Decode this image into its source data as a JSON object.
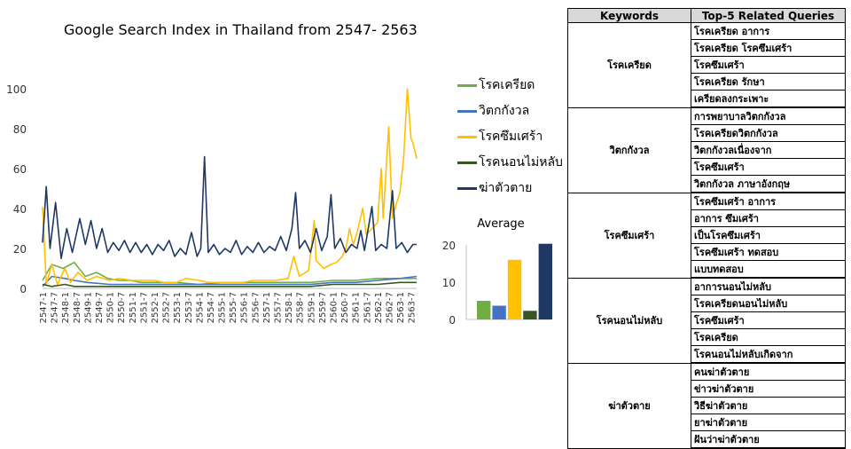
{
  "chart_data": [
    {
      "type": "line",
      "title": "Google Search Index in Thailand from 2547- 2563",
      "ylim": [
        0,
        100
      ],
      "yticks": [
        0,
        20,
        40,
        60,
        80,
        100
      ],
      "x_tick_labels": [
        "2547-1",
        "2547-7",
        "2548-1",
        "2548-7",
        "2549-1",
        "2549-7",
        "2550-1",
        "2550-7",
        "2551-1",
        "2551-7",
        "2552-1",
        "2552-7",
        "2553-1",
        "2553-7",
        "2554-1",
        "2554-7",
        "2555-1",
        "2555-7",
        "2556-1",
        "2556-7",
        "2557-1",
        "2557-7",
        "2558-1",
        "2558-7",
        "2559-1",
        "2559-7",
        "2560-1",
        "2560-7",
        "2561-1",
        "2561-7",
        "2562-1",
        "2562-7",
        "2563-1",
        "2563-7"
      ],
      "x_range": [
        "2547-1",
        "2563-10"
      ],
      "legend": "right",
      "grid": false,
      "series": [
        {
          "name": "โรคเครียด",
          "color": "#70ad47",
          "points": [
            [
              "2547-1",
              4
            ],
            [
              "2547-6",
              12
            ],
            [
              "2547-12",
              10
            ],
            [
              "2548-6",
              13
            ],
            [
              "2548-12",
              6
            ],
            [
              "2549-6",
              8
            ],
            [
              "2549-12",
              5
            ],
            [
              "2550-6",
              4
            ],
            [
              "2550-12",
              4
            ],
            [
              "2551-6",
              3
            ],
            [
              "2552-1",
              3
            ],
            [
              "2553-1",
              3
            ],
            [
              "2554-1",
              2
            ],
            [
              "2555-1",
              3
            ],
            [
              "2556-1",
              3
            ],
            [
              "2557-1",
              3
            ],
            [
              "2558-1",
              3
            ],
            [
              "2559-1",
              3
            ],
            [
              "2560-1",
              4
            ],
            [
              "2561-1",
              4
            ],
            [
              "2562-1",
              5
            ],
            [
              "2563-1",
              5
            ],
            [
              "2563-10",
              5
            ]
          ]
        },
        {
          "name": "วิตกกังวล",
          "color": "#4472c4",
          "points": [
            [
              "2547-1",
              1
            ],
            [
              "2547-6",
              6
            ],
            [
              "2548-1",
              5
            ],
            [
              "2548-6",
              4
            ],
            [
              "2549-1",
              3
            ],
            [
              "2550-1",
              2
            ],
            [
              "2551-1",
              2
            ],
            [
              "2552-1",
              2
            ],
            [
              "2553-1",
              2
            ],
            [
              "2554-1",
              2
            ],
            [
              "2555-1",
              2
            ],
            [
              "2556-1",
              2
            ],
            [
              "2557-1",
              2
            ],
            [
              "2558-1",
              2
            ],
            [
              "2559-1",
              2
            ],
            [
              "2560-1",
              3
            ],
            [
              "2561-1",
              3
            ],
            [
              "2562-1",
              4
            ],
            [
              "2563-1",
              5
            ],
            [
              "2563-10",
              6
            ]
          ]
        },
        {
          "name": "โรคซึมเศร้า",
          "color": "#ffc000",
          "points": [
            [
              "2547-1",
              41
            ],
            [
              "2547-3",
              2
            ],
            [
              "2547-6",
              12
            ],
            [
              "2547-9",
              2
            ],
            [
              "2548-1",
              10
            ],
            [
              "2548-4",
              3
            ],
            [
              "2548-8",
              8
            ],
            [
              "2549-1",
              4
            ],
            [
              "2549-6",
              6
            ],
            [
              "2550-1",
              4
            ],
            [
              "2550-6",
              5
            ],
            [
              "2551-1",
              4
            ],
            [
              "2551-6",
              4
            ],
            [
              "2552-1",
              4
            ],
            [
              "2552-6",
              3
            ],
            [
              "2553-1",
              3
            ],
            [
              "2553-6",
              5
            ],
            [
              "2554-1",
              4
            ],
            [
              "2554-6",
              3
            ],
            [
              "2555-1",
              3
            ],
            [
              "2556-1",
              3
            ],
            [
              "2556-6",
              4
            ],
            [
              "2557-1",
              4
            ],
            [
              "2557-6",
              4
            ],
            [
              "2558-1",
              5
            ],
            [
              "2558-4",
              16
            ],
            [
              "2558-7",
              6
            ],
            [
              "2558-12",
              9
            ],
            [
              "2559-3",
              34
            ],
            [
              "2559-4",
              14
            ],
            [
              "2559-8",
              10
            ],
            [
              "2559-12",
              12
            ],
            [
              "2560-3",
              13
            ],
            [
              "2560-6",
              16
            ],
            [
              "2560-8",
              20
            ],
            [
              "2560-10",
              30
            ],
            [
              "2560-12",
              22
            ],
            [
              "2561-2",
              28
            ],
            [
              "2561-5",
              40
            ],
            [
              "2561-7",
              27
            ],
            [
              "2561-10",
              30
            ],
            [
              "2562-1",
              33
            ],
            [
              "2562-3",
              60
            ],
            [
              "2562-4",
              35
            ],
            [
              "2562-7",
              81
            ],
            [
              "2562-9",
              35
            ],
            [
              "2562-11",
              42
            ],
            [
              "2563-1",
              48
            ],
            [
              "2563-3",
              65
            ],
            [
              "2563-5",
              100
            ],
            [
              "2563-7",
              75
            ],
            [
              "2563-8",
              73
            ],
            [
              "2563-10",
              65
            ]
          ]
        },
        {
          "name": "โรคนอนไม่หลับ",
          "color": "#375623",
          "points": [
            [
              "2547-1",
              2
            ],
            [
              "2547-6",
              1
            ],
            [
              "2548-1",
              2
            ],
            [
              "2548-6",
              1
            ],
            [
              "2549-1",
              1
            ],
            [
              "2550-1",
              1
            ],
            [
              "2551-1",
              1
            ],
            [
              "2552-1",
              1
            ],
            [
              "2553-1",
              1
            ],
            [
              "2554-1",
              1
            ],
            [
              "2555-1",
              1
            ],
            [
              "2556-1",
              1
            ],
            [
              "2557-1",
              1
            ],
            [
              "2558-1",
              1
            ],
            [
              "2559-1",
              1
            ],
            [
              "2560-1",
              2
            ],
            [
              "2561-1",
              2
            ],
            [
              "2562-1",
              2
            ],
            [
              "2563-1",
              3
            ],
            [
              "2563-10",
              3
            ]
          ]
        },
        {
          "name": "ฆ่าตัวตาย",
          "color": "#203864",
          "points": [
            [
              "2547-1",
              23
            ],
            [
              "2547-3",
              51
            ],
            [
              "2547-5",
              20
            ],
            [
              "2547-8",
              43
            ],
            [
              "2547-11",
              15
            ],
            [
              "2548-2",
              30
            ],
            [
              "2548-5",
              18
            ],
            [
              "2548-9",
              35
            ],
            [
              "2548-12",
              22
            ],
            [
              "2549-3",
              34
            ],
            [
              "2549-6",
              20
            ],
            [
              "2549-9",
              30
            ],
            [
              "2549-12",
              18
            ],
            [
              "2550-3",
              23
            ],
            [
              "2550-6",
              19
            ],
            [
              "2550-9",
              24
            ],
            [
              "2550-12",
              18
            ],
            [
              "2551-3",
              23
            ],
            [
              "2551-6",
              18
            ],
            [
              "2551-9",
              22
            ],
            [
              "2551-12",
              17
            ],
            [
              "2552-3",
              22
            ],
            [
              "2552-6",
              19
            ],
            [
              "2552-9",
              24
            ],
            [
              "2552-12",
              16
            ],
            [
              "2553-3",
              20
            ],
            [
              "2553-6",
              17
            ],
            [
              "2553-9",
              28
            ],
            [
              "2553-12",
              16
            ],
            [
              "2554-2",
              20
            ],
            [
              "2554-4",
              66
            ],
            [
              "2554-6",
              18
            ],
            [
              "2554-9",
              22
            ],
            [
              "2554-12",
              17
            ],
            [
              "2555-3",
              20
            ],
            [
              "2555-6",
              18
            ],
            [
              "2555-9",
              24
            ],
            [
              "2555-12",
              17
            ],
            [
              "2556-3",
              21
            ],
            [
              "2556-6",
              18
            ],
            [
              "2556-9",
              23
            ],
            [
              "2556-12",
              18
            ],
            [
              "2557-3",
              21
            ],
            [
              "2557-6",
              19
            ],
            [
              "2557-9",
              26
            ],
            [
              "2557-12",
              19
            ],
            [
              "2558-3",
              30
            ],
            [
              "2558-5",
              48
            ],
            [
              "2558-7",
              20
            ],
            [
              "2558-10",
              24
            ],
            [
              "2559-1",
              18
            ],
            [
              "2559-4",
              30
            ],
            [
              "2559-7",
              19
            ],
            [
              "2559-10",
              26
            ],
            [
              "2559-12",
              47
            ],
            [
              "2560-2",
              20
            ],
            [
              "2560-5",
              25
            ],
            [
              "2560-8",
              18
            ],
            [
              "2560-11",
              22
            ],
            [
              "2561-2",
              20
            ],
            [
              "2561-4",
              29
            ],
            [
              "2561-6",
              19
            ],
            [
              "2561-10",
              41
            ],
            [
              "2561-12",
              19
            ],
            [
              "2562-3",
              22
            ],
            [
              "2562-6",
              20
            ],
            [
              "2562-9",
              49
            ],
            [
              "2562-11",
              20
            ],
            [
              "2563-2",
              23
            ],
            [
              "2563-5",
              18
            ],
            [
              "2563-8",
              22
            ],
            [
              "2563-10",
              22
            ]
          ]
        }
      ]
    },
    {
      "type": "bar",
      "title": "Average",
      "ylim": [
        0,
        20
      ],
      "yticks": [
        0,
        10,
        20
      ],
      "grid": false,
      "bars": [
        {
          "value": 5,
          "color": "#70ad47"
        },
        {
          "value": 3.7,
          "color": "#4472c4"
        },
        {
          "value": 16,
          "color": "#ffc000"
        },
        {
          "value": 2.3,
          "color": "#375623"
        },
        {
          "value": 20.3,
          "color": "#203864"
        }
      ]
    }
  ],
  "table": {
    "headers": [
      "Keywords",
      "Top-5 Related Queries"
    ],
    "groups": [
      {
        "keyword": "โรคเครียด",
        "queries": [
          "โรคเครียด อาการ",
          "โรคเครียด โรคซึมเศร้า",
          "โรคซึมเศร้า",
          "โรคเครียด รักษา",
          "เครียดลงกระเพาะ"
        ]
      },
      {
        "keyword": "วิตกกังวล",
        "queries": [
          "การพยาบาลวิตกกังวล",
          "โรคเครียดวิตกกังวล",
          "วิตกกังวลเนื่องจาก",
          "โรคซึมเศร้า",
          "วิตกกังวล ภาษาอังกฤษ"
        ]
      },
      {
        "keyword": "โรคซึมเศร้า",
        "queries": [
          "โรคซึมเศร้า อาการ",
          "อาการ ซึมเศร้า",
          "เป็นโรคซึมเศร้า",
          "โรคซึมเศร้า ทดสอบ",
          "แบบทดสอบ"
        ]
      },
      {
        "keyword": "โรคนอนไม่หลับ",
        "queries": [
          "อาการนอนไม่หลับ",
          "โรคเครียดนอนไม่หลับ",
          "โรคซึมเศร้า",
          "โรคเครียด",
          "โรคนอนไม่หลับเกิดจาก"
        ]
      },
      {
        "keyword": "ฆ่าตัวตาย",
        "queries": [
          "คนฆ่าตัวตาย",
          "ข่าวฆ่าตัวตาย",
          "วิธีฆ่าตัวตาย",
          "ยาฆ่าตัวตาย",
          "ฝันว่าฆ่าตัวตาย"
        ]
      }
    ]
  }
}
